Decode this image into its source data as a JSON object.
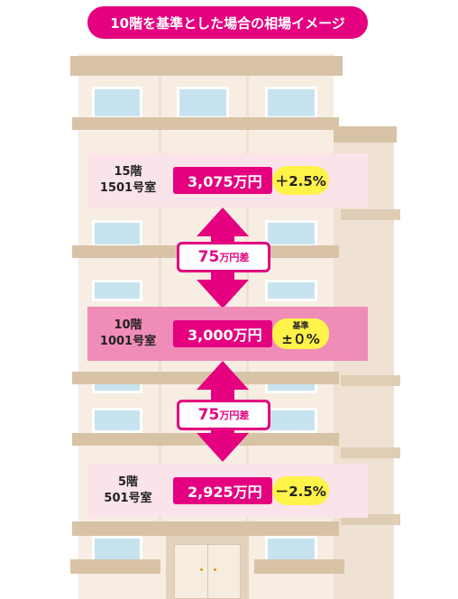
{
  "title": "10階を基準とした場合の相場イメージ",
  "floors": [
    {
      "floor": "15階",
      "room": "1501号室",
      "price": "3,075万円",
      "badge": "＋2.5%"
    },
    {
      "floor": "10階",
      "room": "1001号室",
      "price": "3,000万円",
      "badge_top": "基準",
      "badge": "±０%"
    },
    {
      "floor": "5階",
      "room": "501号室",
      "price": "2,925万円",
      "badge": "－2.5%"
    }
  ],
  "differences": [
    {
      "value": "75",
      "unit": "万円差"
    },
    {
      "value": "75",
      "unit": "万円差"
    }
  ],
  "colors": {
    "accent": "#e4007f",
    "highlight_band": "#f08cb8",
    "band": "#fbe3ea",
    "badge": "#fff34a",
    "building": "#f7ede3",
    "ledge": "#d9c3a6",
    "window": "#c7e3ef"
  }
}
